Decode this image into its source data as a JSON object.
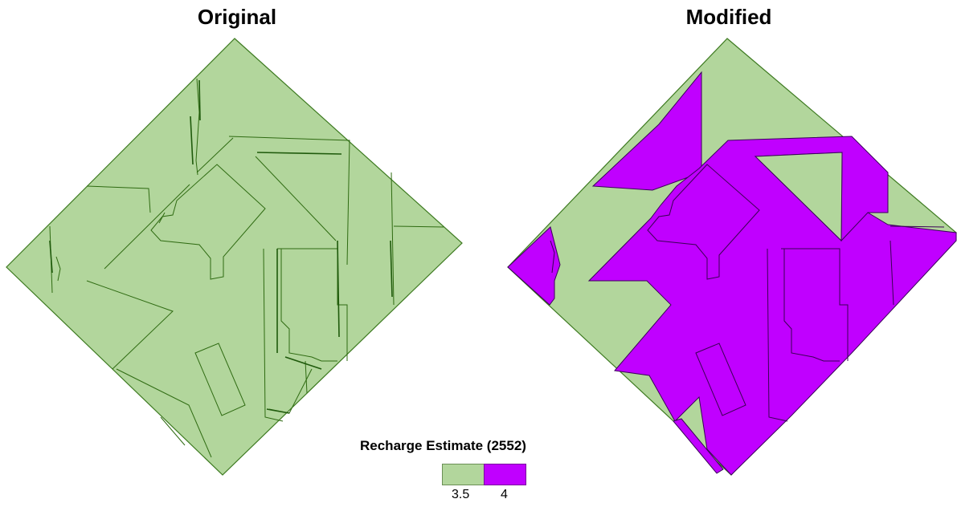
{
  "titles": {
    "original": "Original",
    "modified": "Modified"
  },
  "legend": {
    "title": "Recharge Estimate (2552)",
    "classes": [
      {
        "label": "3.5",
        "value": 3.5,
        "color": "#b2d69c"
      },
      {
        "label": "4",
        "value": 4,
        "color": "#c000ff"
      }
    ]
  },
  "colors": {
    "low": "#b2d69c",
    "high": "#c000ff",
    "outline": "#2f6b12",
    "edge": "#3d7a20"
  }
}
